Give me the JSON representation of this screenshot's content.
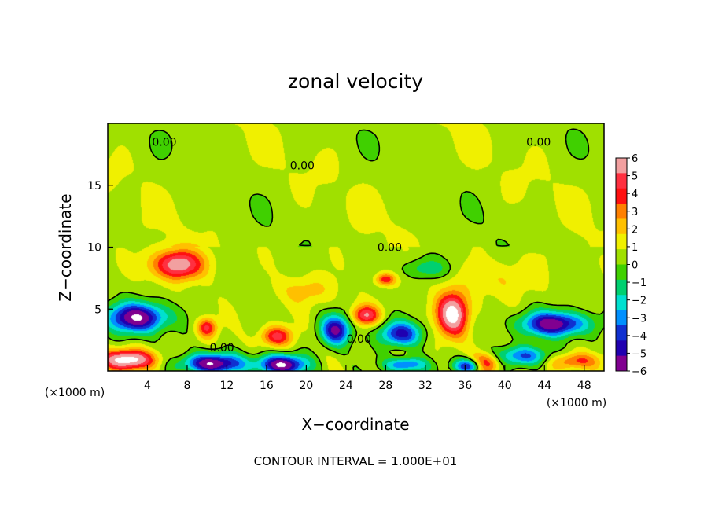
{
  "chart_data": {
    "type": "heatmap",
    "title": "zonal velocity",
    "xlabel": "X−coordinate",
    "ylabel": "Z−coordinate",
    "x_unit": "(×1000 m)",
    "y_unit": "(×1000 m)",
    "xlim": [
      0,
      50
    ],
    "ylim": [
      0,
      20
    ],
    "x_ticks": [
      "4",
      "8",
      "12",
      "16",
      "20",
      "24",
      "28",
      "32",
      "36",
      "40",
      "44",
      "48"
    ],
    "y_ticks": [
      "5",
      "10",
      "15"
    ],
    "colorbar": {
      "ticks": [
        "6",
        "5",
        "4",
        "3",
        "2",
        "1",
        "0",
        "−1",
        "−2",
        "−3",
        "−4",
        "−5",
        "−6"
      ],
      "colors": [
        "#f2a0a0",
        "#ff3040",
        "#ff1010",
        "#ff8000",
        "#ffc000",
        "#f0f000",
        "#a0e000",
        "#40d000",
        "#00d070",
        "#00e0d0",
        "#0090ff",
        "#1030d0",
        "#2000b0",
        "#800090"
      ]
    },
    "contour_labels": [
      {
        "text": "0.00",
        "x": 5.7,
        "z": 18.5
      },
      {
        "text": "0.00",
        "x": 43.4,
        "z": 18.5
      },
      {
        "text": "0.00",
        "x": 19.6,
        "z": 16.6
      },
      {
        "text": "0.00",
        "x": 28.4,
        "z": 10.0
      },
      {
        "text": "0.00",
        "x": 11.5,
        "z": 1.9
      },
      {
        "text": "0.00",
        "x": 25.3,
        "z": 2.6
      }
    ],
    "features": [
      {
        "sign": 1,
        "x": 7.0,
        "z": 8.6,
        "rx": 2.6,
        "rz": 1.2,
        "amp": 5.5
      },
      {
        "sign": -1,
        "x": 3.0,
        "z": 4.3,
        "rx": 3.0,
        "rz": 1.2,
        "amp": 6.8
      },
      {
        "sign": -1,
        "x": 45.0,
        "z": 3.8,
        "rx": 3.3,
        "rz": 1.0,
        "amp": 6.5
      },
      {
        "sign": 1,
        "x": 34.8,
        "z": 4.6,
        "rx": 1.6,
        "rz": 1.8,
        "amp": 6.5
      },
      {
        "sign": 1,
        "x": 2.0,
        "z": 0.9,
        "rx": 2.8,
        "rz": 0.8,
        "amp": 6.5
      },
      {
        "sign": -1,
        "x": 10.5,
        "z": 0.6,
        "rx": 3.0,
        "rz": 0.8,
        "amp": 6.8
      },
      {
        "sign": -1,
        "x": 17.5,
        "z": 0.5,
        "rx": 2.5,
        "rz": 0.8,
        "amp": 6.8
      },
      {
        "sign": -1,
        "x": 23.0,
        "z": 3.3,
        "rx": 1.5,
        "rz": 1.2,
        "amp": 5.8
      },
      {
        "sign": 1,
        "x": 26.0,
        "z": 4.5,
        "rx": 1.4,
        "rz": 0.8,
        "amp": 4.5
      },
      {
        "sign": 1,
        "x": 17.0,
        "z": 2.8,
        "rx": 1.6,
        "rz": 0.8,
        "amp": 4.0
      },
      {
        "sign": -1,
        "x": 29.5,
        "z": 3.0,
        "rx": 2.2,
        "rz": 1.0,
        "amp": 5.0
      },
      {
        "sign": 1,
        "x": 38.0,
        "z": 0.6,
        "rx": 1.5,
        "rz": 0.8,
        "amp": 5.0
      },
      {
        "sign": -1,
        "x": 42.0,
        "z": 1.2,
        "rx": 3.0,
        "rz": 0.8,
        "amp": 4.0
      },
      {
        "sign": 1,
        "x": 47.0,
        "z": 0.8,
        "rx": 2.5,
        "rz": 0.7,
        "amp": 3.5
      },
      {
        "sign": -1,
        "x": 30.0,
        "z": 0.5,
        "rx": 2.0,
        "rz": 0.6,
        "amp": 4.5
      },
      {
        "sign": -1,
        "x": 36.5,
        "z": 0.4,
        "rx": 1.5,
        "rz": 0.6,
        "amp": 6.0
      },
      {
        "sign": 1,
        "x": 10.0,
        "z": 3.5,
        "rx": 1.0,
        "rz": 0.8,
        "amp": 4.0
      },
      {
        "sign": 1,
        "x": 28.0,
        "z": 7.4,
        "rx": 1.0,
        "rz": 0.5,
        "amp": 3.5
      },
      {
        "sign": -1,
        "x": 32.0,
        "z": 8.3,
        "rx": 2.5,
        "rz": 0.8,
        "amp": 1.8
      },
      {
        "sign": 1,
        "x": 20.0,
        "z": 6.5,
        "rx": 3.0,
        "rz": 1.2,
        "amp": 1.5
      },
      {
        "sign": 1,
        "x": 40.0,
        "z": 7.5,
        "rx": 3.5,
        "rz": 1.5,
        "amp": 1.2
      }
    ]
  },
  "footer": {
    "contour_interval": "CONTOUR INTERVAL = 1.000E+01"
  }
}
